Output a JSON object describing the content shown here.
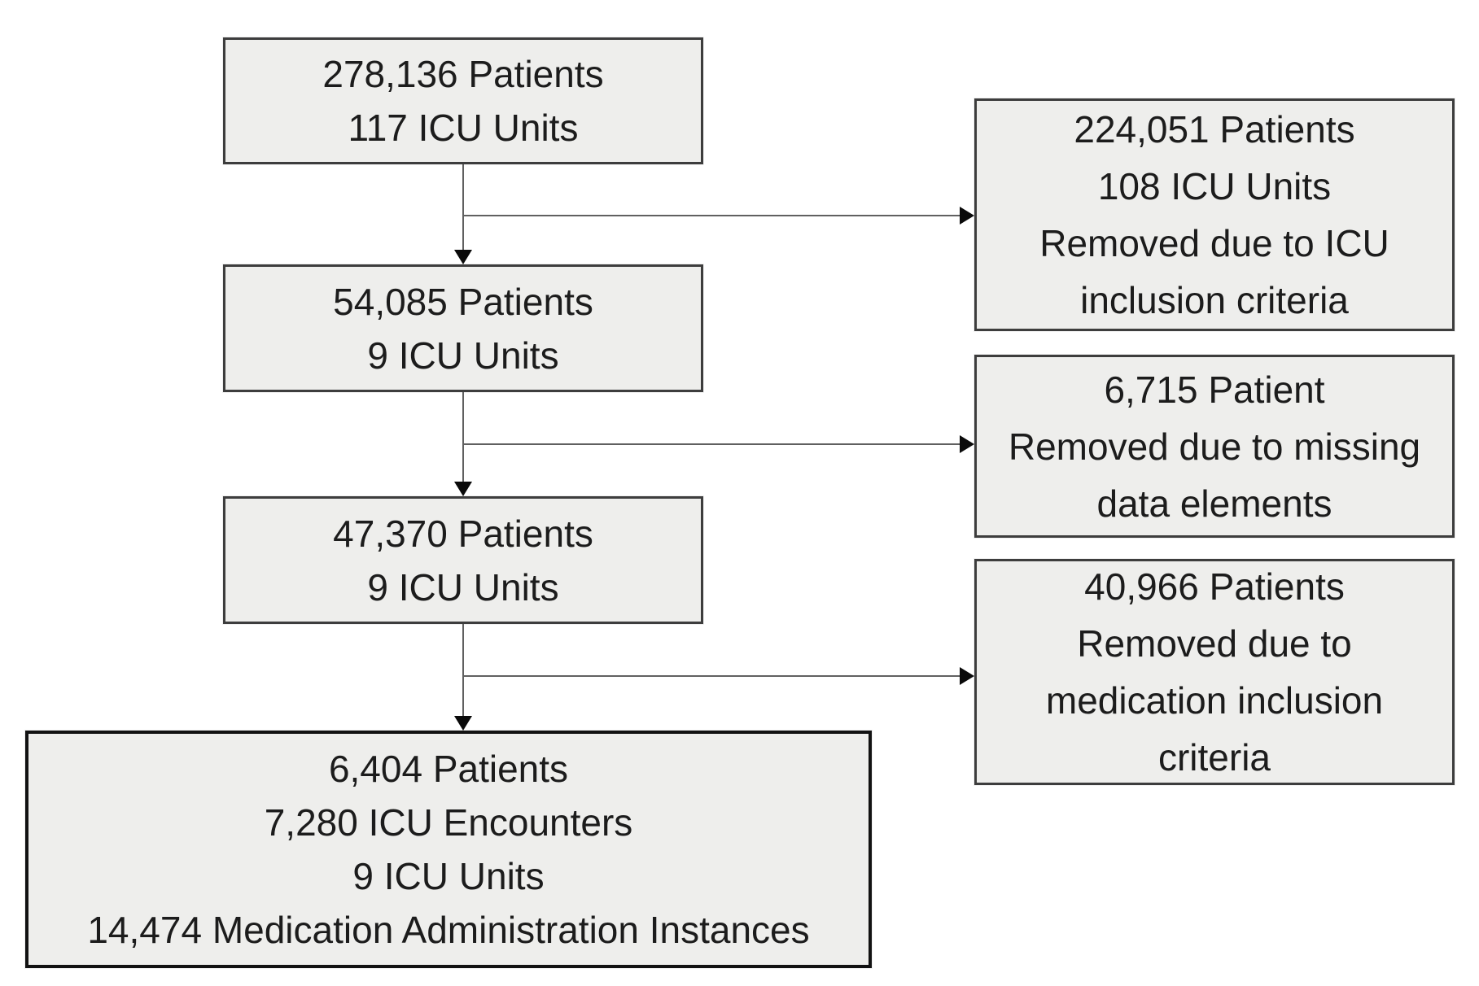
{
  "colors": {
    "bg": "#ffffff",
    "box-fill": "#eeeeec",
    "box-border": "#3d3d3d",
    "final-border": "#121212",
    "line": "#606060",
    "arrowhead": "#0a0a0a",
    "text": "#1c1c1c"
  },
  "nodes": {
    "main1": {
      "lines": [
        "278,136 Patients",
        "117 ICU Units"
      ]
    },
    "main2": {
      "lines": [
        "54,085 Patients",
        "9 ICU Units"
      ]
    },
    "main3": {
      "lines": [
        "47,370 Patients",
        "9 ICU Units"
      ]
    },
    "final": {
      "lines": [
        "6,404 Patients",
        "7,280 ICU Encounters",
        "9 ICU Units",
        "14,474 Medication Administration Instances"
      ]
    },
    "excl1": {
      "lines": [
        "224,051 Patients",
        "108 ICU Units",
        "Removed due to ICU",
        "inclusion criteria"
      ]
    },
    "excl2": {
      "lines": [
        "6,715 Patient",
        "Removed due to missing",
        "data elements"
      ]
    },
    "excl3": {
      "lines": [
        "40,966 Patients",
        "Removed due to",
        "medication inclusion",
        "criteria"
      ]
    }
  },
  "edges": [
    {
      "from": "main1",
      "to": "main2",
      "type": "down"
    },
    {
      "from": "main1",
      "to": "excl1",
      "type": "branch-right"
    },
    {
      "from": "main2",
      "to": "main3",
      "type": "down"
    },
    {
      "from": "main2",
      "to": "excl2",
      "type": "branch-right"
    },
    {
      "from": "main3",
      "to": "final",
      "type": "down"
    },
    {
      "from": "main3",
      "to": "excl3",
      "type": "branch-right"
    }
  ]
}
